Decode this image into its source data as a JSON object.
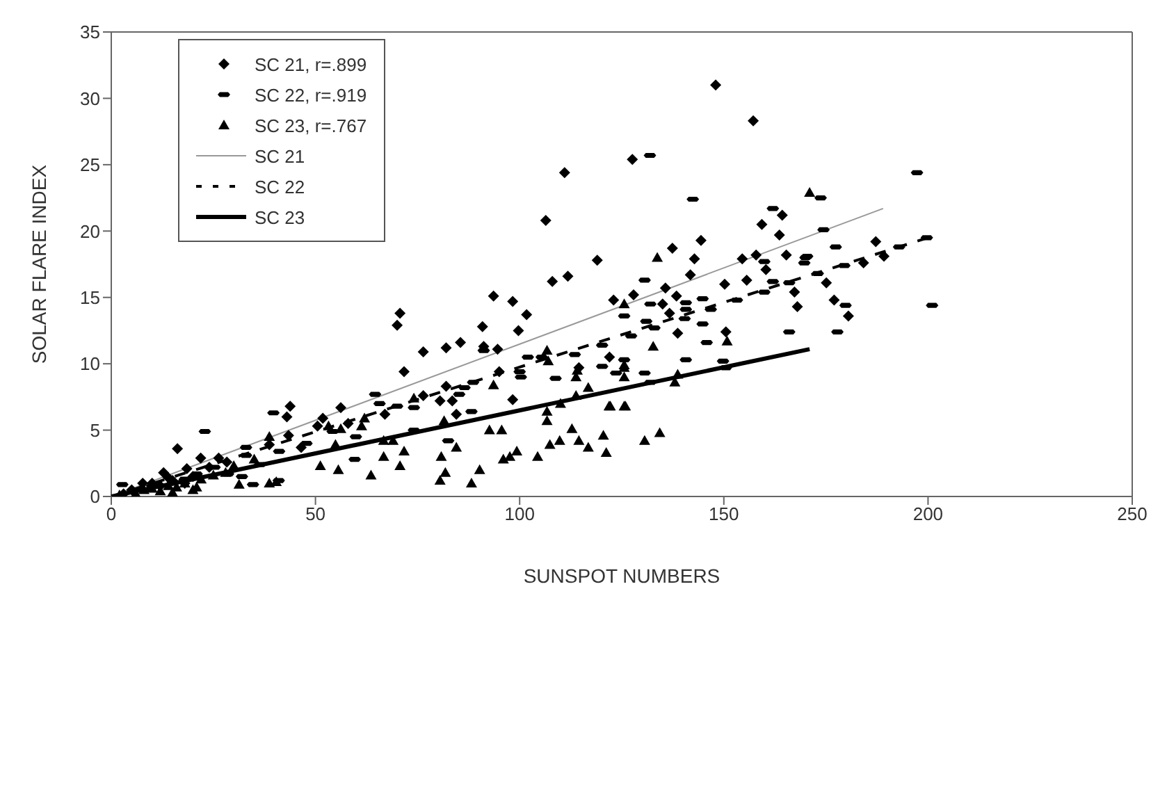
{
  "chart_data": {
    "type": "scatter",
    "xlabel": "SUNSPOT NUMBERS",
    "ylabel": "SOLAR FLARE INDEX",
    "xlim": [
      0,
      250
    ],
    "xticks": [
      0,
      50,
      100,
      150,
      200,
      250
    ],
    "ylim": [
      0,
      35
    ],
    "yticks": [
      0,
      5,
      10,
      15,
      20,
      25,
      30,
      35
    ],
    "legend": "top left",
    "series": [
      {
        "name": "SC 21, r=.899",
        "type": "scatter",
        "marker": "diamond",
        "color": "#000000",
        "x": [
          148,
          157.2,
          127.6,
          111,
          106.4,
          119,
          108,
          111.8,
          123,
          93.6,
          98.3,
          101.7,
          70.7,
          70,
          90.9,
          99.7,
          76.4,
          82,
          85.5,
          91.2,
          94.6,
          122,
          71.7,
          95,
          114.5,
          82,
          76.4,
          80.5,
          83.5,
          98.3,
          43.8,
          43,
          56.2,
          84.5,
          67,
          51.8,
          50.5,
          58,
          43.4,
          38.7,
          46.5,
          16.2,
          21.9,
          26.3,
          28.3,
          18.5,
          12.8,
          7.7,
          5,
          10,
          12,
          15,
          3,
          20,
          14,
          18,
          24,
          142.8,
          154.5,
          157.9,
          165.3,
          189.2,
          184.2,
          141.8,
          160.3,
          150.2,
          155.6,
          175.1,
          167.3,
          135.7,
          127.9,
          138.4,
          135,
          177,
          168,
          136.7,
          180.5,
          138.7,
          150.5,
          137.4,
          144.4,
          159.3,
          164.3,
          163.6,
          187.2
        ],
        "values": [
          31,
          28.3,
          25.4,
          24.4,
          20.8,
          17.8,
          16.2,
          16.6,
          14.8,
          15.1,
          14.7,
          13.7,
          13.8,
          12.9,
          12.8,
          12.5,
          10.9,
          11.2,
          11.6,
          11.3,
          11.1,
          10.5,
          9.4,
          9.4,
          9.7,
          8.3,
          7.6,
          7.2,
          7.2,
          7.3,
          6.8,
          6,
          6.7,
          6.2,
          6.2,
          5.9,
          5.3,
          5.5,
          4.6,
          3.9,
          3.7,
          3.6,
          2.9,
          2.9,
          2.6,
          2.1,
          1.8,
          1,
          0.5,
          1,
          0.8,
          1.2,
          0.2,
          1.5,
          1.4,
          1,
          2.2,
          17.9,
          17.9,
          18.2,
          18.2,
          18.1,
          17.6,
          16.7,
          17.1,
          16,
          16.3,
          16.1,
          15.4,
          15.7,
          15.2,
          15.1,
          14.5,
          14.8,
          14.3,
          13.8,
          13.6,
          12.3,
          12.4,
          18.7,
          19.3,
          20.5,
          21.2,
          19.7,
          19.2
        ]
      },
      {
        "name": "SC 22, r=.919",
        "type": "scatter",
        "color": "#000000",
        "x": [
          131.9,
          142.4,
          197.3,
          162,
          173.7,
          174.4,
          177.4,
          199.7,
          192.9,
          170.4,
          159.9,
          130.6,
          170,
          169.7,
          179.5,
          173,
          162,
          166,
          159.9,
          132,
          140.7,
          144.8,
          140.7,
          146.8,
          153.2,
          179.8,
          201,
          125.6,
          131,
          140.4,
          144.8,
          133,
          127.3,
          145.8,
          166,
          177.8,
          125.6,
          140.7,
          149.8,
          130.6,
          123.6,
          132,
          150.5,
          120.2,
          113.5,
          102,
          105.4,
          120.2,
          100,
          100.3,
          108.8,
          91.2,
          88.6,
          86.5,
          85.2,
          88.2,
          64.6,
          65.7,
          70,
          74.1,
          39.7,
          22.9,
          74.1,
          59.9,
          82.5,
          54.2,
          47.8,
          41.1,
          59.6,
          33,
          36.4,
          33,
          25.3,
          28.6,
          34.7,
          32,
          2.7,
          41,
          20.9,
          10,
          15,
          18
        ],
        "values": [
          25.7,
          22.4,
          24.4,
          21.7,
          22.5,
          20.1,
          18.8,
          19.5,
          18.8,
          18.1,
          17.7,
          16.3,
          18,
          17.6,
          17.4,
          16.8,
          16.2,
          16.1,
          15.4,
          14.5,
          14.6,
          14.9,
          14.1,
          14.1,
          14.8,
          14.4,
          14.4,
          13.6,
          13.2,
          13.4,
          13,
          12.7,
          12.1,
          11.6,
          12.4,
          12.4,
          10.3,
          10.3,
          10.2,
          9.3,
          9.3,
          8.6,
          9.7,
          11.4,
          10.7,
          10.5,
          10.5,
          9.8,
          9.4,
          9,
          8.9,
          11,
          8.6,
          8.2,
          7.7,
          6.4,
          7.7,
          7,
          6.8,
          6.7,
          6.3,
          4.9,
          5,
          4.5,
          4.2,
          4.9,
          4,
          3.4,
          2.8,
          3.1,
          2.4,
          3.7,
          2.2,
          1.7,
          0.9,
          1.5,
          0.9,
          1.2,
          1.7,
          0.8,
          1,
          1.3
        ]
      },
      {
        "name": "SC 23, r=.767",
        "type": "scatter",
        "marker": "triangle",
        "color": "#000000",
        "x": [
          106.7,
          107,
          114.1,
          113.8,
          125.6,
          125.6,
          74.1,
          116.8,
          113.8,
          110,
          121.9,
          125.6,
          106.7,
          106.7,
          93.6,
          81.5,
          62,
          53.2,
          56.2,
          61.3,
          92.6,
          95.6,
          112.8,
          120.5,
          38.7,
          54.9,
          66.7,
          69,
          84.5,
          107.4,
          109.8,
          114.5,
          116.8,
          121.2,
          71.7,
          66.7,
          80.8,
          99.3,
          96,
          97.6,
          104.4,
          70.7,
          51.2,
          55.6,
          90.2,
          81.8,
          63.6,
          80.5,
          88.2,
          40.4,
          31.3,
          20.9,
          38.7,
          133.7,
          125.6,
          132.7,
          150.8,
          125.6,
          138.7,
          138,
          122.2,
          125.9,
          134.3,
          130.6,
          171,
          2,
          8,
          10,
          12,
          14,
          16,
          18,
          20,
          22,
          25,
          28,
          15,
          6,
          30,
          35
        ],
        "values": [
          11,
          10.2,
          9.5,
          9,
          9.7,
          9,
          7.4,
          8.2,
          7.6,
          7,
          6.8,
          6.8,
          6.4,
          5.7,
          8.4,
          5.7,
          5.9,
          5.3,
          5.1,
          5.3,
          5,
          5,
          5.1,
          4.6,
          4.5,
          3.9,
          4.2,
          4.2,
          3.7,
          3.9,
          4.2,
          4.2,
          3.7,
          3.3,
          3.4,
          3,
          3,
          3.4,
          2.8,
          3,
          3,
          2.3,
          2.3,
          2,
          2,
          1.8,
          1.6,
          1.2,
          1,
          1.1,
          0.9,
          0.7,
          1,
          18,
          14.5,
          11.3,
          11.7,
          9.9,
          9.2,
          8.6,
          6.8,
          6.8,
          4.8,
          4.2,
          22.9,
          0.1,
          0.5,
          0.6,
          0.4,
          0.8,
          0.7,
          1,
          0.5,
          1.3,
          1.6,
          1.8,
          0.3,
          0.2,
          2.3,
          2.8
        ]
      },
      {
        "name": "SC 21",
        "type": "line",
        "line_style": "solid",
        "color": "#999999",
        "x": [
          0,
          189
        ],
        "values": [
          0,
          21.7
        ]
      },
      {
        "name": "SC 22",
        "type": "line",
        "line_style": "dashed",
        "color": "#000000",
        "x": [
          0,
          200
        ],
        "values": [
          0,
          19.5
        ]
      },
      {
        "name": "SC 23",
        "type": "line",
        "line_style": "solid",
        "color": "#000000",
        "x": [
          0,
          171
        ],
        "values": [
          0,
          11.1
        ]
      }
    ]
  }
}
